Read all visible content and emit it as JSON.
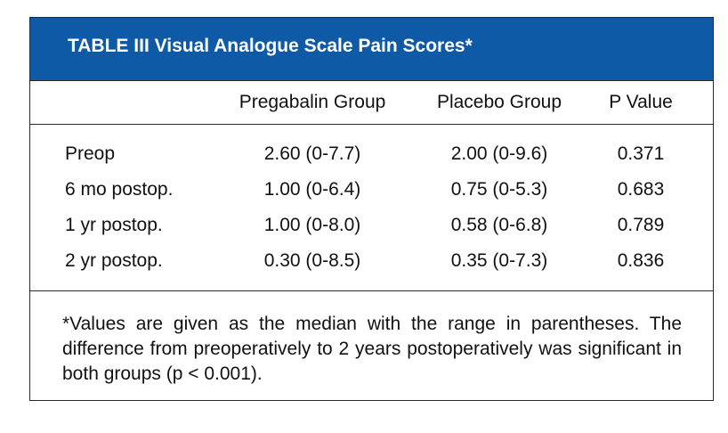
{
  "table": {
    "title": "TABLE III Visual Analogue Scale Pain Scores*",
    "columns": [
      "",
      "Pregabalin Group",
      "Placebo Group",
      "P Value"
    ],
    "rows": [
      {
        "label": "Preop",
        "pregabalin": "2.60 (0-7.7)",
        "placebo": "2.00 (0-9.6)",
        "p": "0.371"
      },
      {
        "label": "6 mo postop.",
        "pregabalin": "1.00 (0-6.4)",
        "placebo": "0.75 (0-5.3)",
        "p": "0.683"
      },
      {
        "label": "1 yr postop.",
        "pregabalin": "1.00 (0-8.0)",
        "placebo": "0.58 (0-6.8)",
        "p": "0.789"
      },
      {
        "label": "2 yr postop.",
        "pregabalin": "0.30 (0-8.5)",
        "placebo": "0.35 (0-7.3)",
        "p": "0.836"
      }
    ],
    "footnote": "*Values are given as the median with the range in parentheses. The difference from preoperatively to 2 years postoperatively was significant in both groups (p < 0.001).",
    "colors": {
      "title_bar": "#0f5aa6",
      "title_text": "#ffffff",
      "border": "#2a2a2a"
    }
  }
}
